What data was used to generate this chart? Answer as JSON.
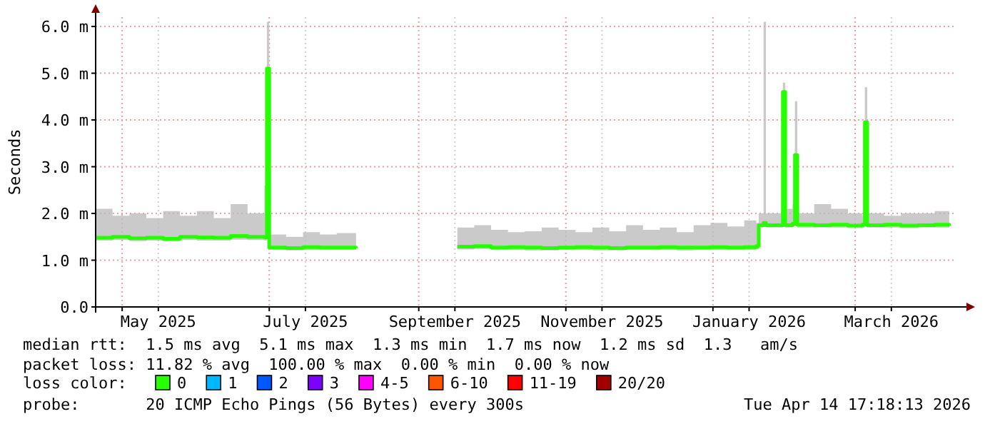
{
  "chart_data": {
    "type": "line",
    "ylabel": "Seconds",
    "legend_title": "loss color:",
    "annotations": [
      "median rtt:  1.5 ms avg  5.1 ms max  1.3 ms min  1.7 ms now  1.2 ms sd  1.3   am/s",
      "packet loss: 11.82 % avg  100.00 % max  0.00 % min  0.00 % now",
      "probe:       20 ICMP Echo Pings (56 Bytes) every 300s",
      "Tue Apr 14 17:18:13 2026"
    ],
    "x": [
      "2025-04-20",
      "2025-04-27",
      "2025-05-04",
      "2025-05-11",
      "2025-05-18",
      "2025-05-25",
      "2025-06-01",
      "2025-06-08",
      "2025-06-15",
      "2025-06-22",
      "2025-06-29",
      "2025-06-30",
      "2025-07-01",
      "2025-07-08",
      "2025-07-15",
      "2025-07-22",
      "2025-07-29",
      "2025-08-06",
      "2025-08-07",
      "2025-09-16",
      "2025-09-17",
      "2025-09-24",
      "2025-10-01",
      "2025-10-08",
      "2025-10-15",
      "2025-10-22",
      "2025-10-29",
      "2025-11-05",
      "2025-11-12",
      "2025-11-19",
      "2025-11-26",
      "2025-12-03",
      "2025-12-10",
      "2025-12-17",
      "2025-12-24",
      "2025-12-31",
      "2026-01-07",
      "2026-01-14",
      "2026-01-19",
      "2026-01-20",
      "2026-01-22",
      "2026-01-23",
      "2026-01-29",
      "2026-01-30",
      "2026-01-31",
      "2026-02-03",
      "2026-02-04",
      "2026-02-05",
      "2026-02-12",
      "2026-02-19",
      "2026-02-26",
      "2026-03-04",
      "2026-03-05",
      "2026-03-06",
      "2026-03-13",
      "2026-03-20",
      "2026-03-27",
      "2026-04-03",
      "2026-04-09"
    ],
    "series": [
      {
        "name": "0",
        "color": "#26ff00",
        "values": [
          1.48,
          1.5,
          1.47,
          1.48,
          1.46,
          1.5,
          1.49,
          1.48,
          1.52,
          1.5,
          1.49,
          5.1,
          1.27,
          1.26,
          1.28,
          1.27,
          1.27,
          1.26,
          null,
          null,
          1.29,
          1.3,
          1.27,
          1.28,
          1.27,
          1.26,
          1.27,
          1.28,
          1.27,
          1.26,
          1.27,
          1.27,
          1.28,
          1.27,
          1.27,
          1.28,
          1.27,
          1.28,
          1.3,
          1.75,
          1.8,
          1.75,
          1.75,
          4.6,
          1.75,
          1.78,
          3.25,
          1.76,
          1.75,
          1.76,
          1.74,
          1.76,
          3.95,
          1.75,
          1.76,
          1.74,
          1.75,
          1.76,
          1.74
        ],
        "lower": [
          1.42,
          1.43,
          1.41,
          1.42,
          1.4,
          1.43,
          1.42,
          1.42,
          1.44,
          1.43,
          1.42,
          1.5,
          1.22,
          1.21,
          1.22,
          1.22,
          1.22,
          1.21,
          null,
          null,
          1.23,
          1.24,
          1.22,
          1.22,
          1.21,
          1.21,
          1.22,
          1.22,
          1.21,
          1.21,
          1.22,
          1.22,
          1.22,
          1.21,
          1.22,
          1.22,
          1.22,
          1.22,
          1.24,
          1.7,
          1.72,
          1.7,
          1.7,
          1.75,
          1.7,
          1.72,
          1.75,
          1.7,
          1.7,
          1.7,
          1.69,
          1.7,
          1.75,
          1.7,
          1.7,
          1.69,
          1.7,
          1.7,
          1.69
        ],
        "upper": [
          2.1,
          1.95,
          2.0,
          1.9,
          2.05,
          1.95,
          2.05,
          1.9,
          2.2,
          2.0,
          2.6,
          6.1,
          1.55,
          1.5,
          1.6,
          1.55,
          1.58,
          1.6,
          null,
          null,
          1.7,
          1.75,
          1.65,
          1.6,
          1.62,
          1.7,
          1.65,
          1.6,
          1.7,
          1.62,
          1.75,
          1.65,
          1.7,
          1.6,
          1.75,
          1.8,
          1.72,
          1.85,
          1.8,
          2.0,
          6.1,
          2.0,
          2.0,
          4.8,
          2.1,
          2.2,
          4.4,
          2.0,
          2.2,
          2.1,
          2.0,
          1.95,
          4.7,
          2.0,
          1.95,
          2.0,
          2.0,
          2.05,
          1.95
        ]
      },
      {
        "name": "1",
        "color": "#00b8ff",
        "values": [
          null,
          null,
          null,
          null,
          null,
          null,
          null,
          null,
          null,
          null,
          null,
          null,
          null,
          null,
          null,
          null,
          null,
          null,
          null,
          null,
          null,
          null,
          null,
          null,
          null,
          null,
          null,
          null,
          null,
          null,
          null,
          null,
          null,
          null,
          null,
          null,
          null,
          null,
          null,
          null,
          null,
          null,
          null,
          null,
          null,
          null,
          null,
          null,
          null,
          null,
          null,
          null,
          null,
          null,
          null,
          null,
          null,
          null,
          null
        ]
      },
      {
        "name": "2",
        "color": "#0059ff",
        "values": [
          null,
          null,
          null,
          null,
          null,
          null,
          null,
          null,
          null,
          null,
          null,
          null,
          null,
          null,
          null,
          null,
          null,
          null,
          null,
          null,
          null,
          null,
          null,
          null,
          null,
          null,
          null,
          null,
          null,
          null,
          null,
          null,
          null,
          null,
          null,
          null,
          null,
          null,
          null,
          null,
          null,
          null,
          null,
          null,
          null,
          null,
          null,
          null,
          null,
          null,
          null,
          null,
          null,
          null,
          null,
          null,
          null,
          null,
          null
        ]
      },
      {
        "name": "3",
        "color": "#7e00ff",
        "values": [
          null,
          null,
          null,
          null,
          null,
          null,
          null,
          null,
          null,
          null,
          null,
          null,
          null,
          null,
          null,
          null,
          null,
          null,
          null,
          null,
          null,
          null,
          null,
          null,
          null,
          null,
          null,
          null,
          null,
          null,
          null,
          null,
          null,
          null,
          null,
          null,
          null,
          null,
          null,
          null,
          null,
          null,
          null,
          null,
          null,
          null,
          null,
          null,
          null,
          null,
          null,
          null,
          null,
          null,
          null,
          null,
          null,
          null,
          null
        ]
      },
      {
        "name": "4-5",
        "color": "#ff00ff",
        "values": [
          null,
          null,
          null,
          null,
          null,
          null,
          null,
          null,
          null,
          null,
          null,
          null,
          null,
          null,
          null,
          null,
          null,
          null,
          null,
          null,
          null,
          null,
          null,
          null,
          null,
          null,
          null,
          null,
          null,
          null,
          null,
          null,
          null,
          null,
          null,
          null,
          null,
          null,
          null,
          null,
          null,
          null,
          null,
          null,
          null,
          null,
          null,
          null,
          null,
          null,
          null,
          null,
          null,
          null,
          null,
          null,
          null,
          null,
          null
        ]
      },
      {
        "name": "6-10",
        "color": "#ff5500",
        "values": [
          null,
          null,
          null,
          null,
          null,
          null,
          null,
          null,
          null,
          null,
          null,
          null,
          null,
          null,
          null,
          null,
          null,
          null,
          null,
          null,
          null,
          null,
          null,
          null,
          null,
          null,
          null,
          null,
          null,
          null,
          null,
          null,
          null,
          null,
          null,
          null,
          null,
          null,
          null,
          null,
          null,
          null,
          null,
          null,
          null,
          null,
          null,
          null,
          null,
          null,
          null,
          null,
          null,
          null,
          null,
          null,
          null,
          null,
          null
        ]
      },
      {
        "name": "11-19",
        "color": "#ff0000",
        "values": [
          null,
          null,
          null,
          null,
          null,
          null,
          null,
          null,
          null,
          null,
          null,
          null,
          null,
          null,
          null,
          null,
          null,
          null,
          null,
          null,
          null,
          null,
          null,
          null,
          null,
          null,
          null,
          null,
          null,
          null,
          null,
          null,
          null,
          null,
          null,
          null,
          null,
          null,
          null,
          null,
          null,
          null,
          null,
          null,
          null,
          null,
          null,
          null,
          null,
          null,
          null,
          null,
          null,
          null,
          null,
          null,
          null,
          null,
          null
        ]
      },
      {
        "name": "20/20",
        "color": "#a10000",
        "values": [
          null,
          null,
          null,
          null,
          null,
          null,
          null,
          null,
          null,
          null,
          null,
          null,
          null,
          null,
          null,
          null,
          null,
          null,
          null,
          null,
          null,
          null,
          null,
          null,
          null,
          null,
          null,
          null,
          null,
          null,
          null,
          null,
          null,
          null,
          null,
          null,
          null,
          null,
          null,
          null,
          null,
          null,
          null,
          null,
          null,
          null,
          null,
          null,
          null,
          null,
          null,
          null,
          null,
          null,
          null,
          null,
          null,
          null,
          null
        ]
      }
    ],
    "xlim": [
      "2025-04-20",
      "2026-04-12"
    ],
    "xticks": [
      {
        "value": "2025-05-01",
        "label": null
      },
      {
        "value": "2025-05-16",
        "label": "May 2025"
      },
      {
        "value": "2025-07-01",
        "label": null
      },
      {
        "value": "2025-07-16",
        "label": "July 2025"
      },
      {
        "value": "2025-09-01",
        "label": null
      },
      {
        "value": "2025-09-16",
        "label": "September 2025"
      },
      {
        "value": "2025-11-01",
        "label": null
      },
      {
        "value": "2025-11-16",
        "label": "November 2025"
      },
      {
        "value": "2026-01-01",
        "label": null
      },
      {
        "value": "2026-01-16",
        "label": "January 2026"
      },
      {
        "value": "2026-03-01",
        "label": null
      },
      {
        "value": "2026-03-16",
        "label": "March 2026"
      }
    ],
    "ylim": [
      0,
      6.2
    ],
    "yticks": [
      {
        "value": 0,
        "label": "0.0"
      },
      {
        "value": 1,
        "label": "1.0 m"
      },
      {
        "value": 2,
        "label": "2.0 m"
      },
      {
        "value": 3,
        "label": "3.0 m"
      },
      {
        "value": 4,
        "label": "4.0 m"
      },
      {
        "value": 5,
        "label": "5.0 m"
      },
      {
        "value": 6,
        "label": "6.0 m"
      }
    ],
    "grid": true,
    "legend": "bottom"
  }
}
